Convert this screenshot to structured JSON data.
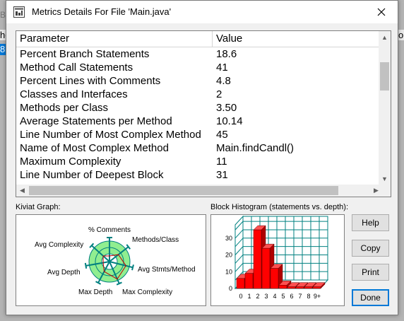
{
  "window": {
    "title": "Metrics Details For File 'Main.java'",
    "close_icon": "close-icon"
  },
  "background_fragments": {
    "line1": "Ba",
    "line2": "he",
    "line3": "8",
    "right": "or"
  },
  "table": {
    "headers": [
      "Parameter",
      "Value"
    ],
    "rows": [
      {
        "parameter": "Percent Branch Statements",
        "value": "18.6"
      },
      {
        "parameter": "Method Call Statements",
        "value": "41"
      },
      {
        "parameter": "Percent Lines with Comments",
        "value": "4.8"
      },
      {
        "parameter": "Classes and Interfaces",
        "value": "2"
      },
      {
        "parameter": "Methods per Class",
        "value": "3.50"
      },
      {
        "parameter": "Average Statements per Method",
        "value": "10.14"
      },
      {
        "parameter": "Line Number of Most Complex Method",
        "value": "45"
      },
      {
        "parameter": "Name of Most Complex Method",
        "value": "Main.findCandl()"
      },
      {
        "parameter": "Maximum Complexity",
        "value": "11"
      },
      {
        "parameter": "Line Number of Deepest Block",
        "value": "31"
      }
    ]
  },
  "kiviat": {
    "label": "Kiviat Graph:",
    "axes": [
      "% Comments",
      "Methods/Class",
      "Avg Stmts/Method",
      "Max Complexity",
      "Max Depth",
      "Avg Depth",
      "Avg Complexity"
    ],
    "fill_color": "#90ee90",
    "line_color": "#008080"
  },
  "histogram": {
    "label": "Block Histogram (statements vs. depth):",
    "bar_color": "#ff0000",
    "grid_color": "#008080"
  },
  "chart_data": {
    "type": "bar",
    "categories": [
      "0",
      "1",
      "2",
      "3",
      "4",
      "5",
      "6",
      "7",
      "8",
      "9+"
    ],
    "values": [
      6,
      9,
      35,
      24,
      12,
      2,
      1,
      1,
      1,
      1
    ],
    "title": "Block Histogram (statements vs. depth):",
    "xlabel": "",
    "ylabel": "",
    "yticks": [
      "0",
      "10",
      "20",
      "30"
    ],
    "ylim": [
      0,
      38
    ],
    "grid": true,
    "style": "3d"
  },
  "buttons": {
    "help": "Help",
    "copy": "Copy",
    "print": "Print",
    "done": "Done"
  }
}
